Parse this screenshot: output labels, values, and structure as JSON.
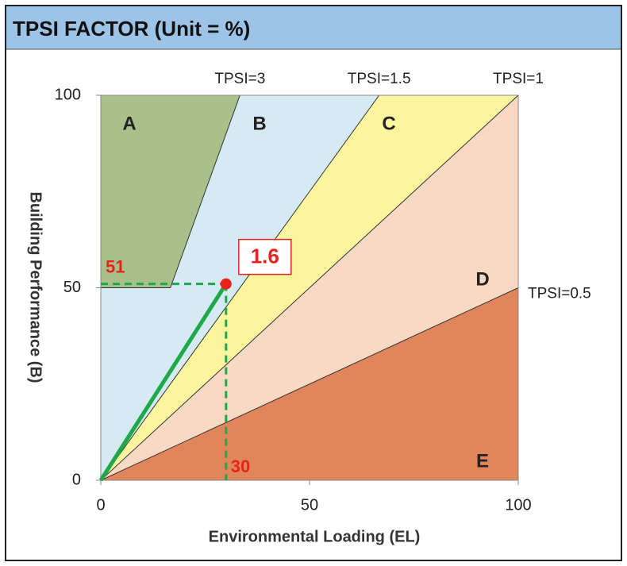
{
  "chart_data": {
    "type": "tpsi",
    "title": "TPSI FACTOR (Unit = %)",
    "xlabel": "Environmental Loading (EL)",
    "ylabel": "Building Performance (B)",
    "xlim": [
      0,
      100
    ],
    "ylim": [
      0,
      100
    ],
    "xticks": [
      0,
      50,
      100
    ],
    "yticks": [
      0,
      50,
      100
    ],
    "lines": [
      {
        "label": "TPSI=3",
        "value": 3
      },
      {
        "label": "TPSI=1.5",
        "value": 1.5
      },
      {
        "label": "TPSI=1",
        "value": 1
      },
      {
        "label": "TPSI=0.5",
        "value": 0.5
      }
    ],
    "a_min_b": 50,
    "regions": [
      {
        "name": "A",
        "color": "#a9c08a"
      },
      {
        "name": "B",
        "color": "#d6eaf3"
      },
      {
        "name": "C",
        "color": "#fbf5a0"
      },
      {
        "name": "D",
        "color": "#f8d9c4"
      },
      {
        "name": "E",
        "color": "#e0855c"
      }
    ],
    "point": {
      "x": 30,
      "y": 51,
      "value_label": "1.6",
      "color": "#e8231b",
      "line_color": "#1fa84a"
    }
  }
}
